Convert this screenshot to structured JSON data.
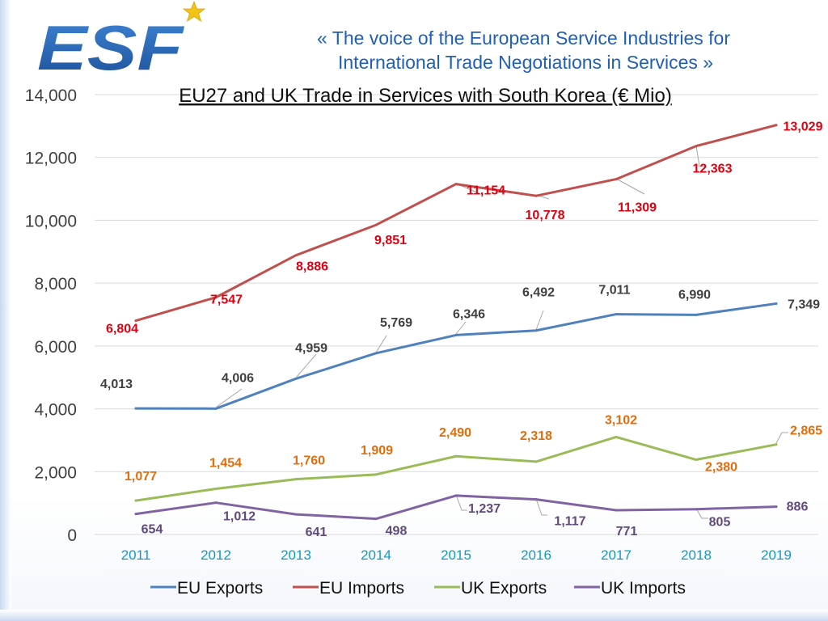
{
  "header": {
    "logo_text": "ESF",
    "tagline_line1": "«  The voice of the European Service Industries for",
    "tagline_line2": "International Trade Negotiations in Services  »"
  },
  "colors": {
    "eu_exports": "#4f81bd",
    "eu_imports": "#c0504d",
    "uk_exports": "#9bbb59",
    "uk_imports": "#8064a2",
    "eu_imports_label": "#e0000f",
    "uk_exports_label": "#e46c0a",
    "uk_imports_label": "#604a7b",
    "eu_exports_label": "#404040",
    "logo_blue": "#2a62b0",
    "star": "#f2c314"
  },
  "chart_data": {
    "type": "line",
    "title": "EU27 and UK Trade in Services with South Korea (€ Mio)",
    "xlabel": "",
    "ylabel": "",
    "categories": [
      "2011",
      "2012",
      "2013",
      "2014",
      "2015",
      "2016",
      "2017",
      "2018",
      "2019"
    ],
    "ylim": [
      0,
      14000
    ],
    "yticks": [
      0,
      2000,
      4000,
      6000,
      8000,
      10000,
      12000,
      14000
    ],
    "ytick_labels": [
      "0",
      "2,000",
      "4,000",
      "6,000",
      "8,000",
      "10,000",
      "12,000",
      "14,000"
    ],
    "grid": true,
    "legend_position": "bottom",
    "series": [
      {
        "name": "EU Exports",
        "values": [
          4013,
          4006,
          4959,
          5769,
          6346,
          6492,
          7011,
          6990,
          7349
        ],
        "labels": [
          "4,013",
          "4,006",
          "4,959",
          "5,769",
          "6,346",
          "6,492",
          "7,011",
          "6,990",
          "7,349"
        ]
      },
      {
        "name": "EU Imports",
        "values": [
          6804,
          7547,
          8886,
          9851,
          11154,
          10778,
          11309,
          12363,
          13029
        ],
        "labels": [
          "6,804",
          "7,547",
          "8,886",
          "9,851",
          "11,154",
          "10,778",
          "11,309",
          "12,363",
          "13,029"
        ]
      },
      {
        "name": "UK Exports",
        "values": [
          1077,
          1454,
          1760,
          1909,
          2490,
          2318,
          3102,
          2380,
          2865
        ],
        "labels": [
          "1,077",
          "1,454",
          "1,760",
          "1,909",
          "2,490",
          "2,318",
          "3,102",
          "2,380",
          "2,865"
        ]
      },
      {
        "name": "UK Imports",
        "values": [
          654,
          1012,
          641,
          498,
          1237,
          1117,
          771,
          805,
          886
        ],
        "labels": [
          "654",
          "1,012",
          "641",
          "498",
          "1,237",
          "1,117",
          "771",
          "805",
          "886"
        ]
      }
    ]
  }
}
